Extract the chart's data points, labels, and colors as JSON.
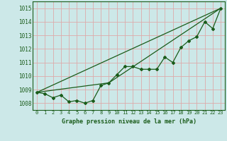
{
  "title": "Graphe pression niveau de la mer (hPa)",
  "background_color": "#cce8e8",
  "grid_color": "#aacccc",
  "line_color": "#1a5c1a",
  "xlim": [
    -0.5,
    23.5
  ],
  "ylim": [
    1007.5,
    1015.5
  ],
  "yticks": [
    1008,
    1009,
    1010,
    1011,
    1012,
    1013,
    1014,
    1015
  ],
  "xticks": [
    0,
    1,
    2,
    3,
    4,
    5,
    6,
    7,
    8,
    9,
    10,
    11,
    12,
    13,
    14,
    15,
    16,
    17,
    18,
    19,
    20,
    21,
    22,
    23
  ],
  "series1_x": [
    0,
    1,
    2,
    3,
    4,
    5,
    6,
    7,
    8,
    9,
    10,
    11,
    12,
    13,
    14,
    15,
    16,
    17,
    18,
    19,
    20,
    21,
    22,
    23
  ],
  "series1_y": [
    1008.8,
    1008.7,
    1008.4,
    1008.6,
    1008.1,
    1008.2,
    1008.0,
    1008.2,
    1009.3,
    1009.5,
    1010.1,
    1010.7,
    1010.7,
    1010.5,
    1010.5,
    1010.5,
    1011.4,
    1011.0,
    1012.1,
    1012.6,
    1012.9,
    1014.0,
    1013.5,
    1015.0
  ],
  "series2_x": [
    0,
    23
  ],
  "series2_y": [
    1008.8,
    1015.0
  ],
  "series3_x": [
    0,
    9,
    23
  ],
  "series3_y": [
    1008.8,
    1009.5,
    1015.0
  ]
}
